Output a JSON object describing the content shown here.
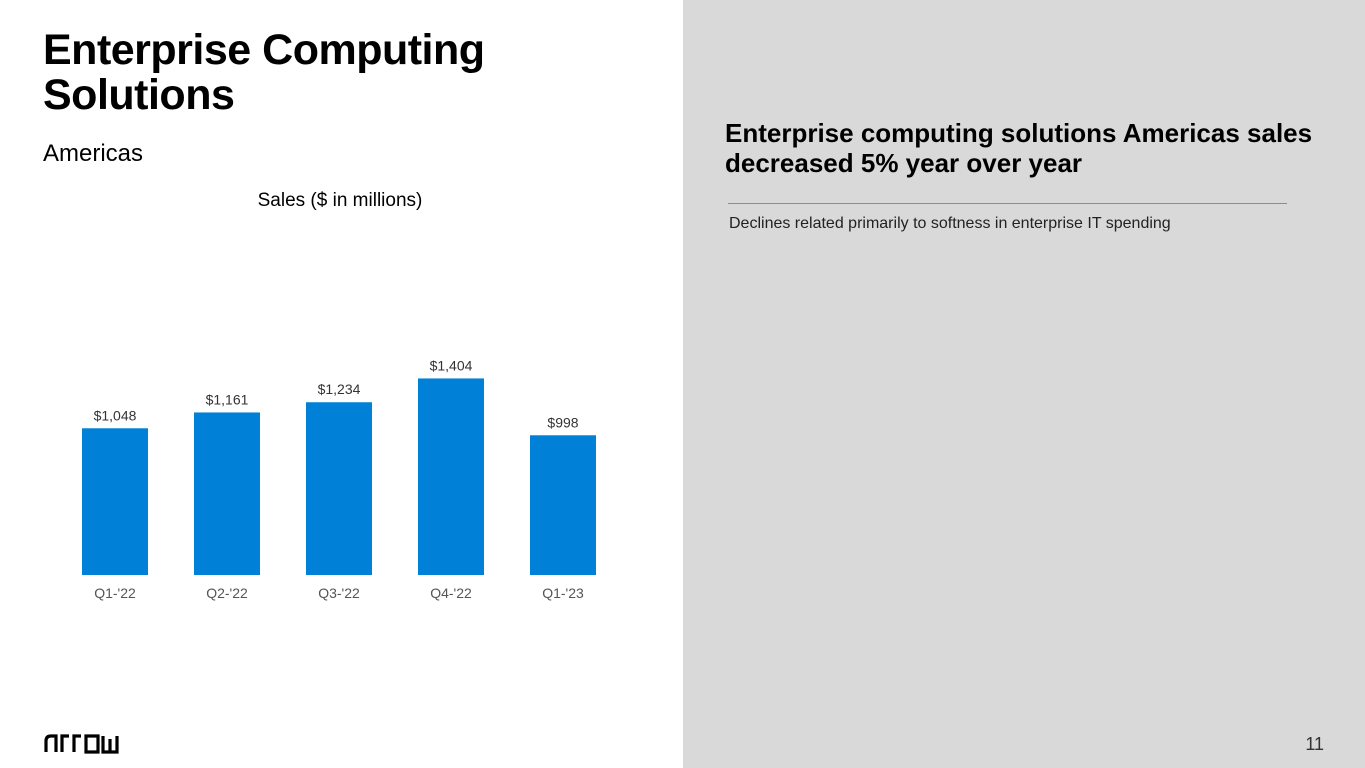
{
  "slide": {
    "title": "Enterprise Computing Solutions",
    "subtitle": "Americas",
    "headline": "Enterprise computing solutions Americas sales decreased 5% year over year",
    "bullet": "Declines related primarily to softness in enterprise IT spending",
    "page_number": "11",
    "logo": {
      "text": "ARROW",
      "icon": "arrow-logo-icon"
    }
  },
  "colors": {
    "bar": "#0080d6",
    "right_panel": "#d9d9d9",
    "label": "#333333",
    "tick_label": "#555555"
  },
  "chart_data": {
    "type": "bar",
    "title": "Sales ($ in millions)",
    "categories": [
      "Q1-'22",
      "Q2-'22",
      "Q3-'22",
      "Q4-'22",
      "Q1-'23"
    ],
    "values": [
      1048,
      1161,
      1234,
      1404,
      998
    ],
    "data_labels": [
      "$1,048",
      "$1,161",
      "$1,234",
      "$1,404",
      "$998"
    ],
    "ylim": [
      0,
      1500
    ],
    "xlabel": "",
    "ylabel": "",
    "grid": false,
    "legend": "none"
  }
}
